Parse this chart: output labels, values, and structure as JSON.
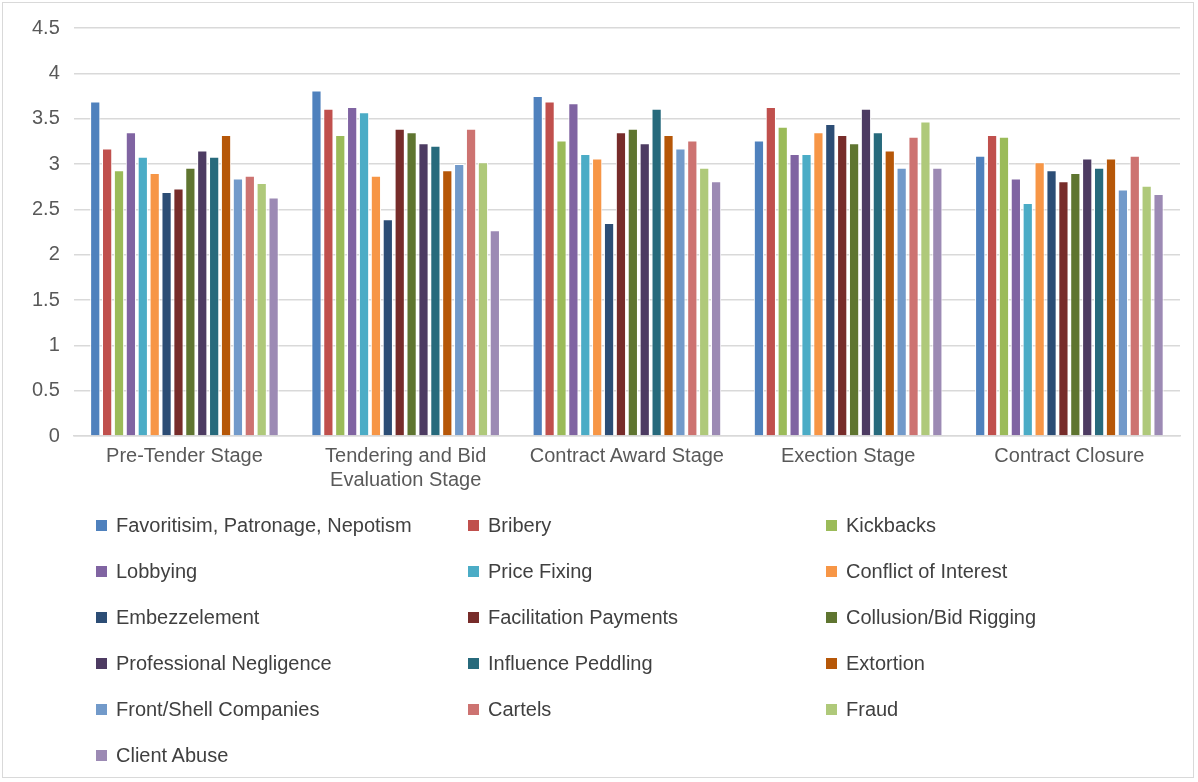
{
  "chart_data": {
    "type": "bar",
    "categories": [
      "Pre-Tender Stage",
      "Tendering and Bid Evaluation Stage",
      "Contract Award Stage",
      "Exection Stage",
      "Contract Closure"
    ],
    "series": [
      {
        "name": "Favoritisim, Patronage, Nepotism",
        "color": "#4f81bd",
        "values": [
          3.69,
          3.81,
          3.75,
          3.26,
          3.09
        ]
      },
      {
        "name": "Bribery",
        "color": "#c0504d",
        "values": [
          3.17,
          3.61,
          3.69,
          3.63,
          3.32
        ]
      },
      {
        "name": "Kickbacks",
        "color": "#9bbb59",
        "values": [
          2.93,
          3.32,
          3.26,
          3.41,
          3.3
        ]
      },
      {
        "name": "Lobbying",
        "color": "#8064a2",
        "values": [
          3.35,
          3.63,
          3.67,
          3.11,
          2.84
        ]
      },
      {
        "name": "Price Fixing",
        "color": "#4bacc6",
        "values": [
          3.08,
          3.57,
          3.11,
          3.11,
          2.57
        ]
      },
      {
        "name": "Conflict of Interest",
        "color": "#f79646",
        "values": [
          2.9,
          2.87,
          3.06,
          3.35,
          3.02
        ]
      },
      {
        "name": "Embezzelement",
        "color": "#2c4d75",
        "values": [
          2.69,
          2.39,
          2.35,
          3.44,
          2.93
        ]
      },
      {
        "name": "Facilitation Payments",
        "color": "#772c2a",
        "values": [
          2.73,
          3.39,
          3.35,
          3.32,
          2.81
        ]
      },
      {
        "name": "Collusion/Bid Rigging",
        "color": "#5f7530",
        "values": [
          2.96,
          3.35,
          3.39,
          3.23,
          2.9
        ]
      },
      {
        "name": "Professional Negligence",
        "color": "#4d3b62",
        "values": [
          3.15,
          3.23,
          3.23,
          3.61,
          3.06
        ]
      },
      {
        "name": "Influence Peddling",
        "color": "#276a7c",
        "values": [
          3.08,
          3.2,
          3.61,
          3.35,
          2.96
        ]
      },
      {
        "name": "Extortion",
        "color": "#b65708",
        "values": [
          3.32,
          2.93,
          3.32,
          3.15,
          3.06
        ]
      },
      {
        "name": "Front/Shell Companies",
        "color": "#729aca",
        "values": [
          2.84,
          3.0,
          3.17,
          2.96,
          2.72
        ]
      },
      {
        "name": "Cartels",
        "color": "#cd7371",
        "values": [
          2.87,
          3.39,
          3.26,
          3.3,
          3.09
        ]
      },
      {
        "name": "Fraud",
        "color": "#afc97a",
        "values": [
          2.79,
          3.02,
          2.96,
          3.47,
          2.76
        ]
      },
      {
        "name": "Client Abuse",
        "color": "#9c8ab4",
        "values": [
          2.63,
          2.27,
          2.81,
          2.96,
          2.67
        ]
      }
    ],
    "ylim": [
      0,
      4.5
    ],
    "yticks": [
      0,
      0.5,
      1,
      1.5,
      2,
      2.5,
      3,
      3.5,
      4,
      4.5
    ],
    "grid": "y",
    "legend": "bottom"
  }
}
